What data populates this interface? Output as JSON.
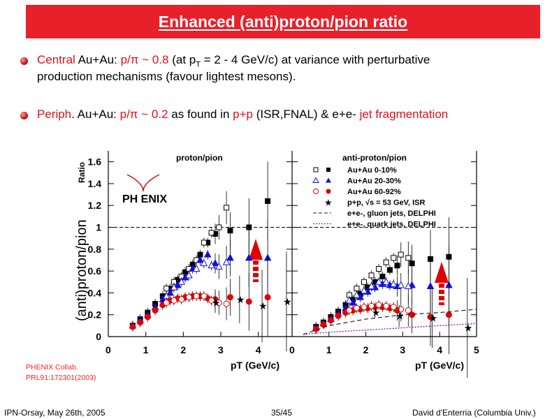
{
  "slide": {
    "title": "Enhanced (anti)proton/pion ratio",
    "bullet1": {
      "t1": "Central",
      "t2": " Au+Au: ",
      "t3": "p/π ~ 0.8",
      "t4": " (at p",
      "sub": "T",
      "t5": " = 2 - 4 GeV/c) at variance with perturbative",
      "line2": "production mechanisms (favour lightest mesons)."
    },
    "bullet2": {
      "t1": "Periph",
      "t2": ". Au+Au: ",
      "t3": "p/π ~ 0.2",
      "t4": "  as found in ",
      "t5": "p+p",
      "t6": " (ISR,FNAL) & e+e- ",
      "t7": "jet fragmentation"
    },
    "reference": {
      "line1": "PHENIX Collab.",
      "line2": "PRL91:172301(2003)"
    },
    "footer": {
      "left": "IPN-Orsay, May 26th, 2005",
      "center": "35/45",
      "right": "David d'Enterria (Columbia Univ.)"
    },
    "colors": {
      "accent": "#e8202a",
      "blue": "#1010e0"
    }
  },
  "chart_data": [
    {
      "type": "scatter",
      "title": "proton/pion",
      "ylabel": "(anti)proton/pion",
      "ylabel_small": "Ratio",
      "xlabel": "pT (GeV/c)",
      "logo": "PH ENIX",
      "xlim": [
        0,
        4.9
      ],
      "ylim": [
        0,
        1.7
      ],
      "reference_line": 1.0,
      "series": [
        {
          "name": "Au+Au 0-10%",
          "marker": "square-filled",
          "x": [
            0.65,
            0.85,
            1.05,
            1.25,
            1.45,
            1.65,
            1.85,
            2.05,
            2.25,
            2.45,
            2.65,
            2.85,
            3.25,
            3.75,
            4.25
          ],
          "y": [
            0.1,
            0.16,
            0.22,
            0.3,
            0.37,
            0.44,
            0.52,
            0.59,
            0.66,
            0.75,
            0.86,
            0.94,
            0.97,
            1.0,
            1.24
          ]
        },
        {
          "name": "Au+Au 0-10% (open)",
          "marker": "square-open",
          "x": [
            1.55,
            1.75,
            1.95,
            2.15,
            2.35,
            2.55,
            2.75,
            2.95,
            3.15
          ],
          "y": [
            0.44,
            0.5,
            0.55,
            0.62,
            0.7,
            0.86,
            0.95,
            1.0,
            1.18
          ]
        },
        {
          "name": "Au+Au 20-30%",
          "marker": "triangle-filled",
          "x": [
            0.65,
            0.85,
            1.05,
            1.25,
            1.45,
            1.65,
            1.85,
            2.05,
            2.25,
            2.45,
            2.65,
            2.85,
            3.25,
            3.75,
            4.25
          ],
          "y": [
            0.1,
            0.15,
            0.2,
            0.27,
            0.34,
            0.4,
            0.47,
            0.54,
            0.62,
            0.7,
            0.75,
            0.67,
            0.72,
            0.72,
            0.72
          ]
        },
        {
          "name": "Au+Au 20-30% (open)",
          "marker": "triangle-open",
          "x": [
            1.55,
            1.75,
            1.95,
            2.15,
            2.35,
            2.55,
            2.75,
            2.95,
            3.15
          ],
          "y": [
            0.37,
            0.45,
            0.5,
            0.56,
            0.62,
            0.67,
            0.65,
            0.64,
            0.68
          ]
        },
        {
          "name": "Au+Au 60-92%",
          "marker": "circle-filled",
          "x": [
            0.65,
            0.85,
            1.05,
            1.25,
            1.45,
            1.65,
            1.85,
            2.05,
            2.25,
            2.45,
            2.65,
            2.85,
            3.25,
            3.75,
            4.25
          ],
          "y": [
            0.09,
            0.13,
            0.18,
            0.24,
            0.29,
            0.33,
            0.35,
            0.36,
            0.37,
            0.37,
            0.35,
            0.34,
            0.36,
            0.32,
            0.36
          ]
        },
        {
          "name": "Au+Au 60-92% (open)",
          "marker": "circle-open",
          "x": [
            1.55,
            1.75,
            1.95,
            2.15,
            2.35,
            2.55,
            2.75,
            2.95,
            3.15
          ],
          "y": [
            0.31,
            0.33,
            0.34,
            0.36,
            0.37,
            0.37,
            0.33,
            0.31,
            0.3
          ]
        },
        {
          "name": "p+p, √s = 53 GeV, ISR",
          "marker": "star",
          "x": [
            2.85,
            3.5,
            4.1,
            4.75
          ],
          "y": [
            0.31,
            0.34,
            0.28,
            0.32
          ]
        }
      ]
    },
    {
      "type": "scatter",
      "title": "anti-proton/pion",
      "xlabel": "pT (GeV/c)",
      "xlim": [
        0,
        5
      ],
      "ylim": [
        0,
        1.7
      ],
      "reference_line": 1.0,
      "legend": [
        "Au+Au 0-10%",
        "Au+Au 20-30%",
        "Au+Au 60-92%",
        "p+p, √s = 53 GeV, ISR",
        "e+e-, gluon jets, DELPHI",
        "e+e-, quark jets, DELPHI"
      ],
      "series": [
        {
          "name": "Au+Au 0-10%",
          "marker": "square-filled",
          "x": [
            0.65,
            0.85,
            1.05,
            1.25,
            1.45,
            1.65,
            1.85,
            2.05,
            2.25,
            2.45,
            2.65,
            2.85,
            3.25,
            3.75,
            4.25
          ],
          "y": [
            0.09,
            0.13,
            0.18,
            0.23,
            0.29,
            0.34,
            0.39,
            0.45,
            0.5,
            0.55,
            0.61,
            0.65,
            0.67,
            0.71,
            0.73
          ]
        },
        {
          "name": "Au+Au 0-10% (open)",
          "marker": "square-open",
          "x": [
            1.55,
            1.75,
            1.95,
            2.15,
            2.35,
            2.55,
            2.75,
            2.95,
            3.15
          ],
          "y": [
            0.38,
            0.44,
            0.5,
            0.56,
            0.62,
            0.68,
            0.72,
            0.75,
            0.72
          ]
        },
        {
          "name": "Au+Au 20-30%",
          "marker": "triangle-filled",
          "x": [
            0.65,
            0.85,
            1.05,
            1.25,
            1.45,
            1.65,
            1.85,
            2.05,
            2.25,
            2.45,
            2.65,
            2.85,
            3.25,
            3.75,
            4.25
          ],
          "y": [
            0.08,
            0.12,
            0.16,
            0.21,
            0.26,
            0.31,
            0.36,
            0.41,
            0.45,
            0.48,
            0.47,
            0.46,
            0.47,
            0.46,
            0.47
          ]
        },
        {
          "name": "Au+Au 20-30% (open)",
          "marker": "triangle-open",
          "x": [
            1.55,
            1.75,
            1.95,
            2.15,
            2.35,
            2.55,
            2.75,
            2.95,
            3.15
          ],
          "y": [
            0.33,
            0.38,
            0.42,
            0.46,
            0.5,
            0.5,
            0.48,
            0.47,
            0.46
          ]
        },
        {
          "name": "Au+Au 60-92%",
          "marker": "circle-filled",
          "x": [
            0.65,
            0.85,
            1.05,
            1.25,
            1.45,
            1.65,
            1.85,
            2.05,
            2.25,
            2.45,
            2.65,
            2.85,
            3.25,
            3.75,
            4.25
          ],
          "y": [
            0.07,
            0.11,
            0.15,
            0.19,
            0.22,
            0.24,
            0.25,
            0.26,
            0.27,
            0.27,
            0.26,
            0.24,
            0.2,
            0.18,
            0.2
          ]
        },
        {
          "name": "Au+Au 60-92% (open)",
          "marker": "circle-open",
          "x": [
            1.55,
            1.75,
            1.95,
            2.15,
            2.35,
            2.55,
            2.75,
            2.95,
            3.15
          ],
          "y": [
            0.24,
            0.26,
            0.27,
            0.28,
            0.29,
            0.28,
            0.27,
            0.25,
            0.24
          ]
        },
        {
          "name": "p+p, √s = 53 GeV, ISR",
          "marker": "star",
          "x": [
            2.25,
            2.9,
            3.8,
            4.75
          ],
          "y": [
            0.22,
            0.19,
            0.17,
            0.08
          ]
        },
        {
          "name": "e+e-, gluon jets, DELPHI",
          "marker": "dashed-line",
          "x": [
            0.3,
            1,
            2,
            3,
            4,
            5
          ],
          "y": [
            0.02,
            0.1,
            0.16,
            0.2,
            0.22,
            0.25
          ]
        },
        {
          "name": "e+e-, quark jets, DELPHI",
          "marker": "dotted-line",
          "x": [
            0.3,
            1,
            2,
            3,
            4,
            5
          ],
          "y": [
            0.02,
            0.04,
            0.06,
            0.08,
            0.1,
            0.12
          ]
        }
      ]
    }
  ]
}
